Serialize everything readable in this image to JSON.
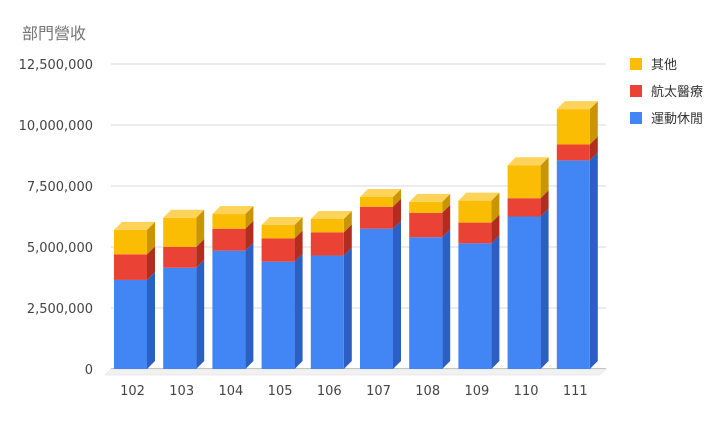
{
  "chart_data": {
    "type": "bar",
    "stacked": true,
    "style": "3d",
    "title": "部門營收",
    "xlabel": "",
    "ylabel": "",
    "categories": [
      "102",
      "103",
      "104",
      "105",
      "106",
      "107",
      "108",
      "109",
      "110",
      "111"
    ],
    "series": [
      {
        "name": "運動休閒",
        "color": "#4285F4",
        "side_color": "#2B5FC4",
        "top_color": "#6A9BF7",
        "values": [
          3650000,
          4150000,
          4850000,
          4400000,
          4650000,
          5750000,
          5400000,
          5150000,
          6250000,
          8550000
        ]
      },
      {
        "name": "航太醫療",
        "color": "#EA4335",
        "side_color": "#B22C20",
        "top_color": "#F07A70",
        "values": [
          1050000,
          850000,
          900000,
          950000,
          950000,
          900000,
          1000000,
          850000,
          750000,
          650000
        ]
      },
      {
        "name": "其他",
        "color": "#FBBC04",
        "side_color": "#C99500",
        "top_color": "#FDD35A",
        "values": [
          1000000,
          1200000,
          600000,
          550000,
          550000,
          400000,
          450000,
          900000,
          1350000,
          1450000
        ]
      }
    ],
    "ylim": [
      0,
      12500000
    ],
    "y_ticks": [
      0,
      2500000,
      5000000,
      7500000,
      10000000,
      12500000
    ],
    "y_tick_labels": [
      "0",
      "2,500,000",
      "5,000,000",
      "7,500,000",
      "10,000,000",
      "12,500,000"
    ],
    "grid": true,
    "legend_position": "right",
    "legend_order": [
      "其他",
      "航太醫療",
      "運動休閒"
    ]
  }
}
